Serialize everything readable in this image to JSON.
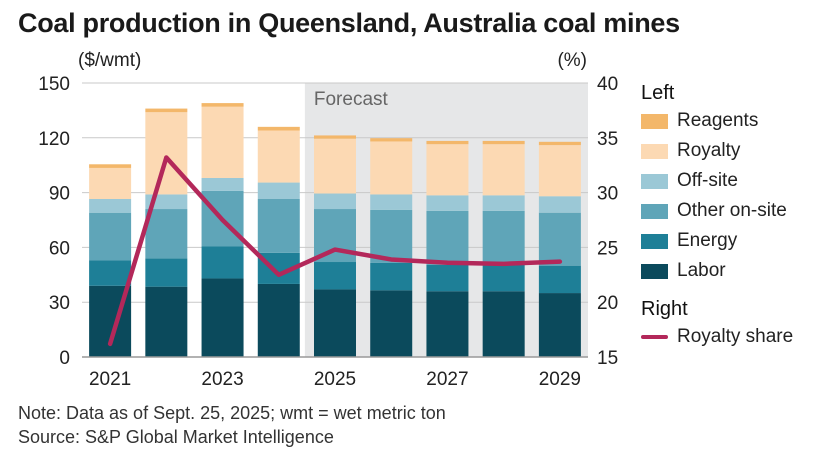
{
  "title": "Coal production in Queensland, Australia coal mines",
  "chart_data": {
    "type": "bar",
    "subtype": "stacked-bar-with-line",
    "left_axis_unit": "($/wmt)",
    "right_axis_unit": "(%)",
    "left_ylim": [
      0,
      150
    ],
    "left_yticks": [
      0,
      30,
      60,
      90,
      120,
      150
    ],
    "right_ylim": [
      15,
      40
    ],
    "right_yticks": [
      15,
      20,
      25,
      30,
      35,
      40
    ],
    "categories": [
      "2021",
      "2022",
      "2023",
      "2024",
      "2025",
      "2026",
      "2027",
      "2028",
      "2029"
    ],
    "x_tick_labels": [
      "2021",
      "2023",
      "2025",
      "2027",
      "2029"
    ],
    "forecast_label": "Forecast",
    "forecast_start": "2025",
    "grid": true,
    "series": [
      {
        "name": "Labor",
        "axis": "left",
        "color": "#0b4a5c",
        "values": [
          39,
          38.5,
          43,
          40,
          37,
          36.5,
          36,
          36,
          35
        ]
      },
      {
        "name": "Energy",
        "axis": "left",
        "color": "#1e7f97",
        "values": [
          14,
          15.5,
          17.5,
          17,
          15,
          15,
          14.5,
          14.5,
          15
        ]
      },
      {
        "name": "Other on-site",
        "axis": "left",
        "color": "#5fa5b8",
        "values": [
          26,
          27,
          30.5,
          29.5,
          29,
          29,
          29.5,
          29.5,
          29
        ]
      },
      {
        "name": "Off-site",
        "axis": "left",
        "color": "#9bc8d6",
        "values": [
          7.5,
          8,
          7,
          9,
          8.5,
          8.5,
          8.5,
          8.5,
          9
        ]
      },
      {
        "name": "Royalty",
        "axis": "left",
        "color": "#fcd9b3",
        "values": [
          17,
          45,
          39,
          28.5,
          30,
          29,
          28,
          28,
          28
        ]
      },
      {
        "name": "Reagents",
        "axis": "left",
        "color": "#f3b76a",
        "values": [
          2,
          2,
          2,
          2,
          1.8,
          1.8,
          1.8,
          1.8,
          1.8
        ]
      },
      {
        "name": "Royalty share",
        "axis": "right",
        "type": "line",
        "color": "#b3285a",
        "values": [
          16.2,
          33.2,
          27.5,
          22.5,
          24.8,
          23.9,
          23.6,
          23.5,
          23.7
        ]
      }
    ],
    "legend": {
      "position": "right",
      "groups": [
        {
          "heading": "Left",
          "items": [
            "Reagents",
            "Royalty",
            "Off-site",
            "Other on-site",
            "Energy",
            "Labor"
          ]
        },
        {
          "heading": "Right",
          "items": [
            "Royalty share"
          ]
        }
      ]
    }
  },
  "notes": {
    "note": "Note: Data as of Sept. 25, 2025; wmt = wet metric ton",
    "source": "Source: S&P Global Market Intelligence"
  }
}
